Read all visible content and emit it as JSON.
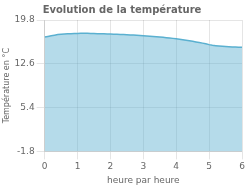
{
  "chart_data": {
    "type": "area",
    "title": "Evolution de la température",
    "xlabel": "heure par heure",
    "ylabel": "Température en °C",
    "color": "#5ab0d0",
    "grid": true,
    "xlim": [
      0,
      6
    ],
    "ylim": [
      -1.8,
      19.8
    ],
    "xticks": [
      0,
      1,
      2,
      3,
      4,
      5,
      6
    ],
    "yticks": [
      -1.8,
      5.4,
      12.6,
      19.8
    ],
    "x": [
      0,
      0.1,
      0.2,
      0.3,
      0.4,
      0.5,
      0.6,
      0.7,
      0.8,
      0.9,
      1.0,
      1.1,
      1.2,
      1.3,
      1.4,
      1.5,
      1.6,
      1.7,
      1.8,
      1.9,
      2.0,
      2.1,
      2.2,
      2.3,
      2.4,
      2.5,
      2.6,
      2.7,
      2.8,
      2.9,
      3.0,
      3.1,
      3.2,
      3.3,
      3.4,
      3.5,
      3.6,
      3.7,
      3.8,
      3.9,
      4.0,
      4.1,
      4.2,
      4.3,
      4.4,
      4.5,
      4.6,
      4.7,
      4.8,
      4.9,
      5.0,
      5.1,
      5.2,
      5.3,
      5.4,
      5.5,
      5.6,
      5.7,
      5.8,
      5.9,
      6.0
    ],
    "values": [
      17.0,
      17.1,
      17.2,
      17.3,
      17.4,
      17.45,
      17.5,
      17.52,
      17.55,
      17.57,
      17.6,
      17.62,
      17.63,
      17.62,
      17.6,
      17.58,
      17.56,
      17.54,
      17.52,
      17.5,
      17.48,
      17.46,
      17.44,
      17.42,
      17.4,
      17.38,
      17.35,
      17.32,
      17.28,
      17.24,
      17.2,
      17.16,
      17.12,
      17.08,
      17.04,
      17.0,
      16.95,
      16.9,
      16.84,
      16.78,
      16.7,
      16.62,
      16.54,
      16.46,
      16.38,
      16.3,
      16.2,
      16.1,
      16.0,
      15.9,
      15.75,
      15.65,
      15.58,
      15.52,
      15.47,
      15.43,
      15.4,
      15.38,
      15.36,
      15.34,
      15.33
    ]
  }
}
